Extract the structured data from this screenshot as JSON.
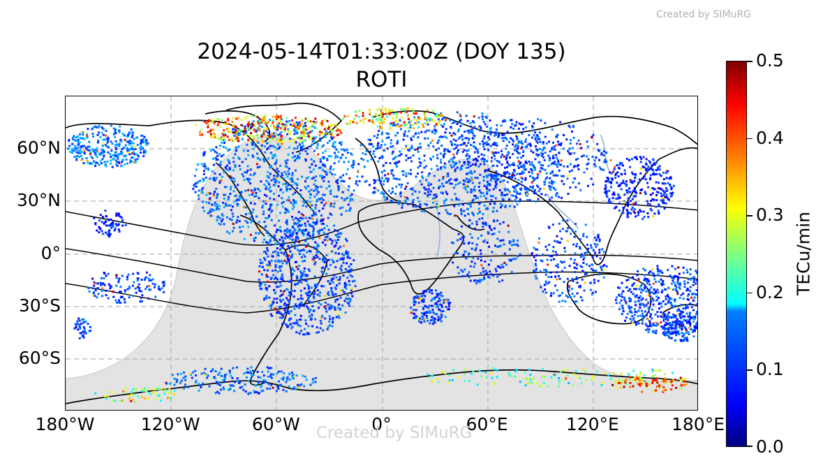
{
  "watermark_top": "Created by SIMuRG",
  "watermark_bottom": "Created by SIMuRG",
  "title_line1": "2024-05-14T01:33:00Z (DOY 135)",
  "title_line2": "ROTI",
  "map": {
    "projection": "PlateCarree",
    "lon_range": [
      -180,
      180
    ],
    "lat_range": [
      -90,
      90
    ],
    "x_ticks": [
      {
        "lon": -180,
        "label": "180°W"
      },
      {
        "lon": -120,
        "label": "120°W"
      },
      {
        "lon": -60,
        "label": "60°W"
      },
      {
        "lon": 0,
        "label": "0°"
      },
      {
        "lon": 60,
        "label": "60°E"
      },
      {
        "lon": 120,
        "label": "120°E"
      },
      {
        "lon": 180,
        "label": "180°E"
      }
    ],
    "y_ticks": [
      {
        "lat": 60,
        "label": "60°N"
      },
      {
        "lat": 30,
        "label": "30°N"
      },
      {
        "lat": 0,
        "label": "0°"
      },
      {
        "lat": -30,
        "label": "30°S"
      },
      {
        "lat": -60,
        "label": "60°S"
      }
    ],
    "gridlines": true,
    "nightside_shading": true,
    "colors": {
      "night": "#e3e3e3",
      "grid": "#b0b0b0",
      "coast": "#000000",
      "rivers": "#8fb0d8"
    }
  },
  "colorbar": {
    "label": "TECu/min",
    "min": 0.0,
    "max": 0.5,
    "cmap": "jet",
    "ticks": [
      {
        "value": 0.0,
        "label": "0.0"
      },
      {
        "value": 0.1,
        "label": "0.1"
      },
      {
        "value": 0.2,
        "label": "0.2"
      },
      {
        "value": 0.3,
        "label": "0.3"
      },
      {
        "value": 0.4,
        "label": "0.4"
      },
      {
        "value": 0.5,
        "label": "0.5"
      }
    ]
  }
}
